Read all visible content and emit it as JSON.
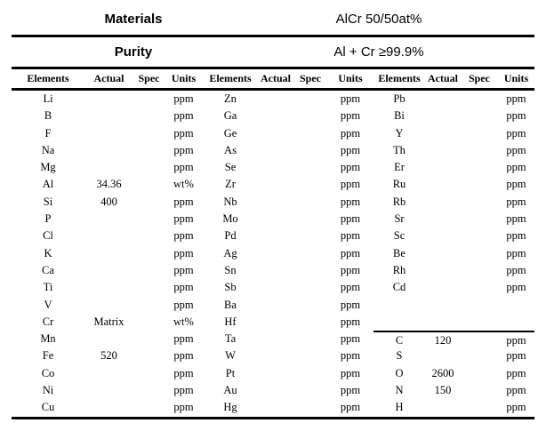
{
  "colors": {
    "text": "#000000",
    "background": "#ffffff",
    "line": "#000000"
  },
  "header": {
    "materials_label": "Materials",
    "materials_value": "AlCr 50/50at%",
    "purity_label": "Purity",
    "purity_value": "Al + Cr ≥99.9%"
  },
  "table": {
    "column_headers": [
      "Elements",
      "Actual",
      "Spec",
      "Units"
    ],
    "groups": [
      {
        "rows": [
          [
            "Li",
            "",
            "",
            "ppm"
          ],
          [
            "B",
            "",
            "",
            "ppm"
          ],
          [
            "F",
            "",
            "",
            "ppm"
          ],
          [
            "Na",
            "",
            "",
            "ppm"
          ],
          [
            "Mg",
            "",
            "",
            "ppm"
          ],
          [
            "Al",
            "34.36",
            "",
            "wt%"
          ],
          [
            "Si",
            "400",
            "",
            "ppm"
          ],
          [
            "P",
            "",
            "",
            "ppm"
          ],
          [
            "Cl",
            "",
            "",
            "ppm"
          ],
          [
            "K",
            "",
            "",
            "ppm"
          ],
          [
            "Ca",
            "",
            "",
            "ppm"
          ],
          [
            "Ti",
            "",
            "",
            "ppm"
          ],
          [
            "V",
            "",
            "",
            "ppm"
          ],
          [
            "Cr",
            "Matrix",
            "",
            "wt%"
          ],
          [
            "Mn",
            "",
            "",
            "ppm"
          ],
          [
            "Fe",
            "520",
            "",
            "ppm"
          ],
          [
            "Co",
            "",
            "",
            "ppm"
          ],
          [
            "Ni",
            "",
            "",
            "ppm"
          ],
          [
            "Cu",
            "",
            "",
            "ppm"
          ]
        ]
      },
      {
        "rows": [
          [
            "Zn",
            "",
            "",
            "ppm"
          ],
          [
            "Ga",
            "",
            "",
            "ppm"
          ],
          [
            "Ge",
            "",
            "",
            "ppm"
          ],
          [
            "As",
            "",
            "",
            "ppm"
          ],
          [
            "Se",
            "",
            "",
            "ppm"
          ],
          [
            "Zr",
            "",
            "",
            "ppm"
          ],
          [
            "Nb",
            "",
            "",
            "ppm"
          ],
          [
            "Mo",
            "",
            "",
            "ppm"
          ],
          [
            "Pd",
            "",
            "",
            "ppm"
          ],
          [
            "Ag",
            "",
            "",
            "ppm"
          ],
          [
            "Sn",
            "",
            "",
            "ppm"
          ],
          [
            "Sb",
            "",
            "",
            "ppm"
          ],
          [
            "Ba",
            "",
            "",
            "ppm"
          ],
          [
            "Hf",
            "",
            "",
            "ppm"
          ],
          [
            "Ta",
            "",
            "",
            "ppm"
          ],
          [
            "W",
            "",
            "",
            "ppm"
          ],
          [
            "Pt",
            "",
            "",
            "ppm"
          ],
          [
            "Au",
            "",
            "",
            "ppm"
          ],
          [
            "Hg",
            "",
            "",
            "ppm"
          ]
        ]
      },
      {
        "separator_row_index": 14,
        "rows": [
          [
            "Pb",
            "",
            "",
            "ppm"
          ],
          [
            "Bi",
            "",
            "",
            "ppm"
          ],
          [
            "Y",
            "",
            "",
            "ppm"
          ],
          [
            "Th",
            "",
            "",
            "ppm"
          ],
          [
            "Er",
            "",
            "",
            "ppm"
          ],
          [
            "Ru",
            "",
            "",
            "ppm"
          ],
          [
            "Rb",
            "",
            "",
            "ppm"
          ],
          [
            "Sr",
            "",
            "",
            "ppm"
          ],
          [
            "Sc",
            "",
            "",
            "ppm"
          ],
          [
            "Be",
            "",
            "",
            "ppm"
          ],
          [
            "Rh",
            "",
            "",
            "ppm"
          ],
          [
            "Cd",
            "",
            "",
            "ppm"
          ],
          [
            "",
            "",
            "",
            ""
          ],
          [
            "",
            "",
            "",
            ""
          ],
          [
            "C",
            "120",
            "",
            "ppm"
          ],
          [
            "S",
            "",
            "",
            "ppm"
          ],
          [
            "O",
            "2600",
            "",
            "ppm"
          ],
          [
            "N",
            "150",
            "",
            "ppm"
          ],
          [
            "H",
            "",
            "",
            "ppm"
          ]
        ]
      }
    ]
  }
}
